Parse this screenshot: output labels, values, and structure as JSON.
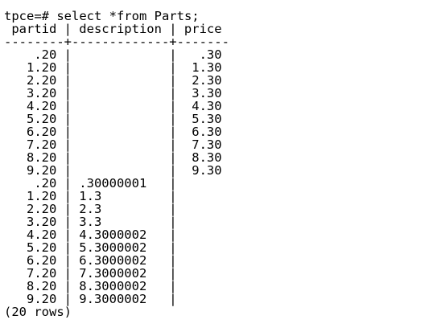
{
  "prompt": "tpce=# select *from Parts;",
  "table": {
    "columns": [
      "partid",
      "description",
      "price"
    ],
    "separator": "--------+-------------+-------",
    "column_separator": "|",
    "rows": [
      [
        ".20",
        null,
        ".30"
      ],
      [
        "1.20",
        null,
        "1.30"
      ],
      [
        "2.20",
        null,
        "2.30"
      ],
      [
        "3.20",
        null,
        "3.30"
      ],
      [
        "4.20",
        null,
        "4.30"
      ],
      [
        "5.20",
        null,
        "5.30"
      ],
      [
        "6.20",
        null,
        "6.30"
      ],
      [
        "7.20",
        null,
        "7.30"
      ],
      [
        "8.20",
        null,
        "8.30"
      ],
      [
        "9.20",
        null,
        "9.30"
      ],
      [
        ".20",
        ".30000001",
        null
      ],
      [
        "1.20",
        "1.3",
        null
      ],
      [
        "2.20",
        "2.3",
        null
      ],
      [
        "3.20",
        "3.3",
        null
      ],
      [
        "4.20",
        "4.3000002",
        null
      ],
      [
        "5.20",
        "5.3000002",
        null
      ],
      [
        "6.20",
        "6.3000002",
        null
      ],
      [
        "7.20",
        "7.3000002",
        null
      ],
      [
        "8.20",
        "8.3000002",
        null
      ],
      [
        "9.20",
        "9.3000002",
        null
      ]
    ]
  },
  "footer": "(20 rows)"
}
